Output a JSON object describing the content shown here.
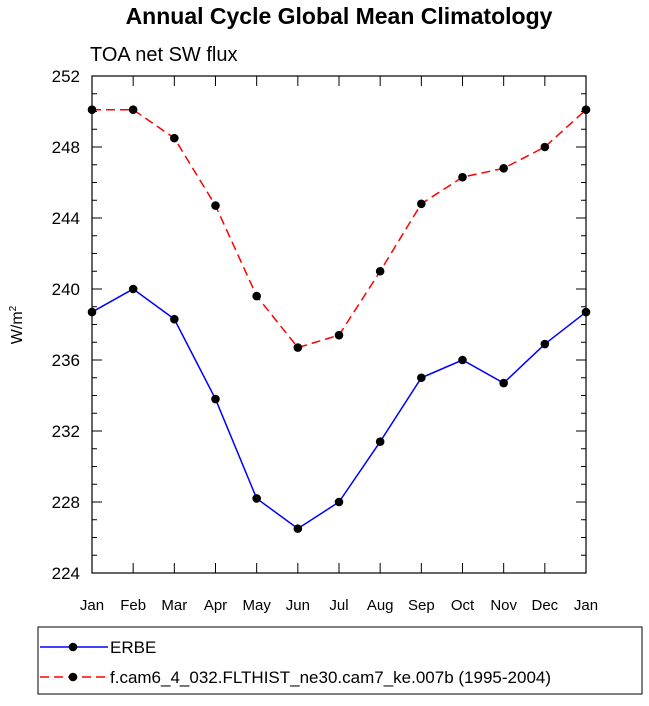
{
  "chart_data": {
    "type": "line",
    "title": "Annual Cycle Global Mean Climatology",
    "subtitle": "TOA net SW flux",
    "xlabel": "",
    "ylabel": "W/m",
    "ylabel_superscript": "2",
    "categories": [
      "Jan",
      "Feb",
      "Mar",
      "Apr",
      "May",
      "Jun",
      "Jul",
      "Aug",
      "Sep",
      "Oct",
      "Nov",
      "Dec",
      "Jan"
    ],
    "ylim": [
      224,
      252
    ],
    "yticks": [
      224,
      228,
      232,
      236,
      240,
      244,
      248,
      252
    ],
    "grid": false,
    "legend_position": "bottom",
    "series": [
      {
        "name": "ERBE",
        "color": "#0000ff",
        "line_style": "solid",
        "values": [
          238.7,
          240.0,
          238.3,
          233.8,
          228.2,
          226.5,
          228.0,
          231.4,
          235.0,
          236.0,
          234.7,
          236.9,
          238.7
        ]
      },
      {
        "name": "f.cam6_4_032.FLTHIST_ne30.cam7_ke.007b (1995-2004)",
        "color": "#ff0000",
        "line_style": "dashed",
        "values": [
          250.1,
          250.1,
          248.5,
          244.7,
          239.6,
          236.7,
          237.4,
          241.0,
          244.8,
          246.3,
          246.8,
          248.0,
          250.1
        ]
      }
    ]
  }
}
